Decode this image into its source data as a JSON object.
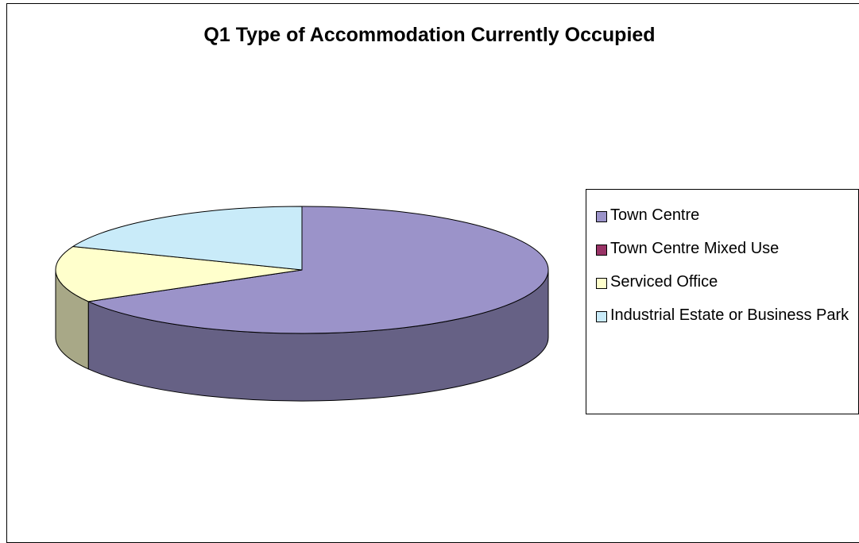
{
  "chart_data": {
    "type": "pie",
    "title": "Q1 Type of Accommodation Currently Occupied",
    "categories": [
      "Town Centre",
      "Town Centre Mixed Use",
      "Serviced Office",
      "Industrial Estate or Business Park"
    ],
    "values": [
      66.7,
      0,
      14.3,
      19.0
    ],
    "colors": [
      "#9b93c9",
      "#993366",
      "#ffffcc",
      "#c9ebf9"
    ],
    "legend": "right"
  }
}
